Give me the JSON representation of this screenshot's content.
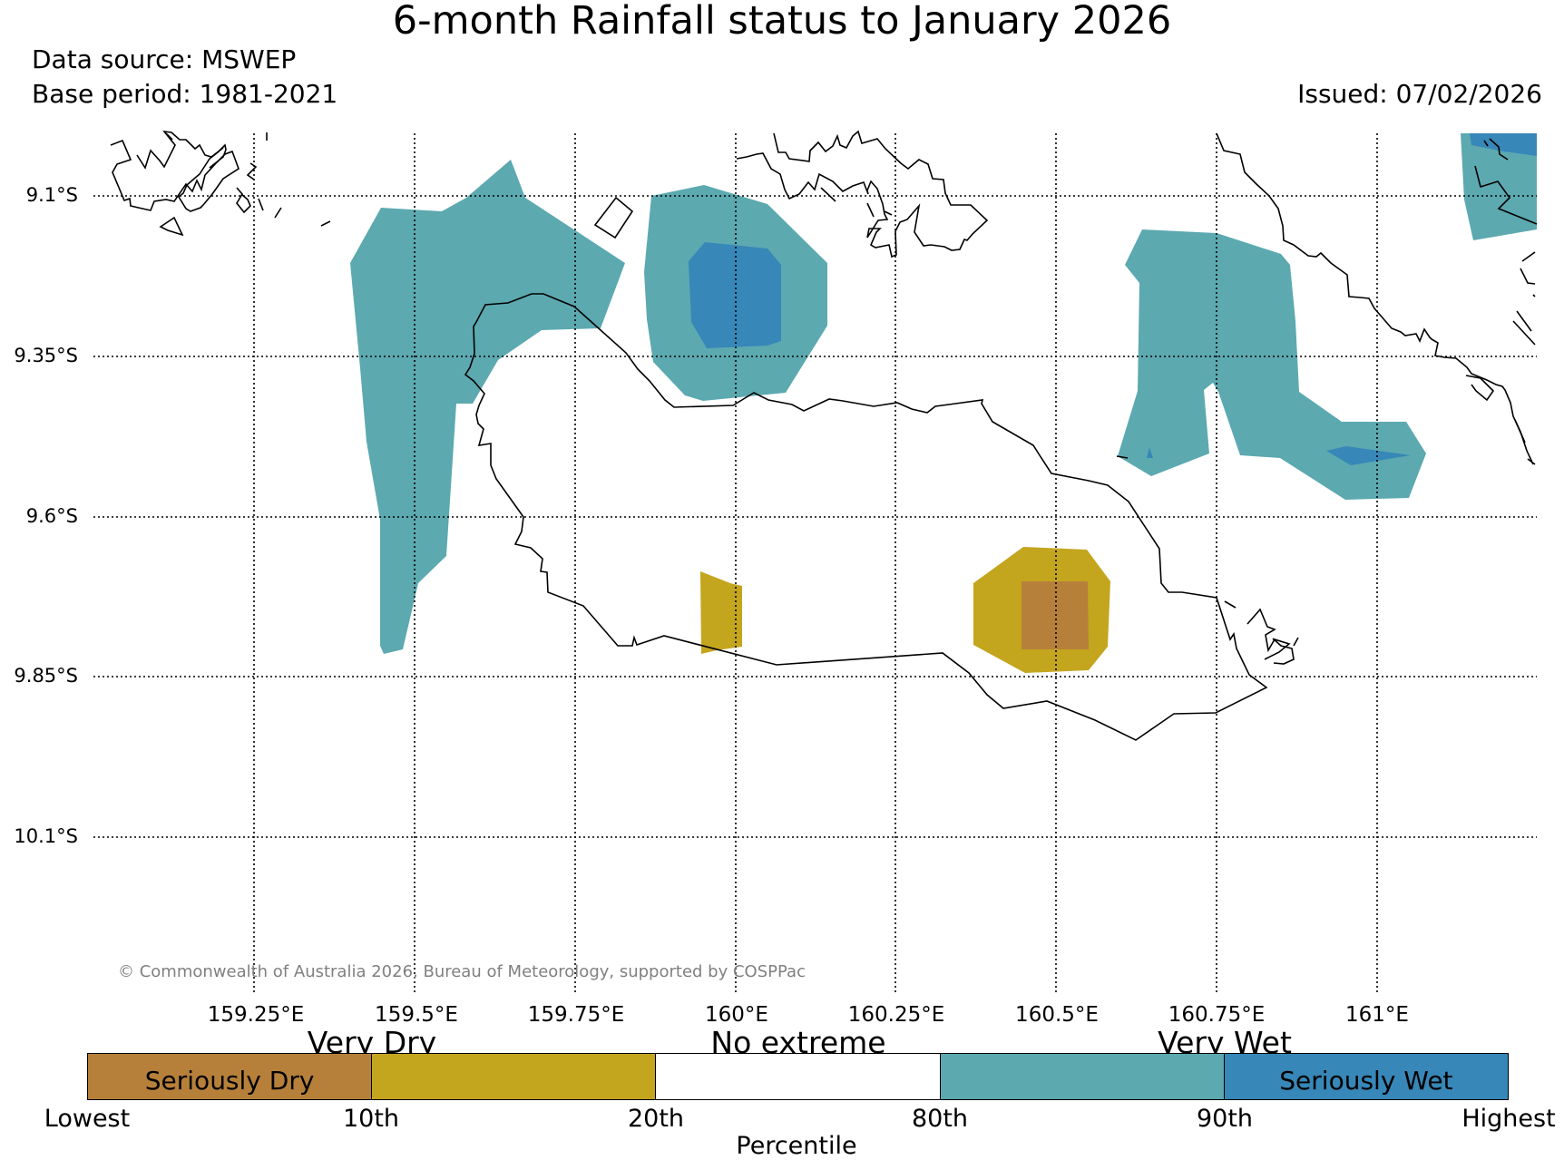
{
  "title": "6-month Rainfall status to January 2026",
  "data_source": "Data source: MSWEP",
  "base_period": "Base period: 1981-2021",
  "issued": "Issued: 07/02/2026",
  "copyright": "© Commonwealth of Australia 2026, Bureau of Meteorology, supported by COSPPac",
  "latitude_labels": [
    "9.1°S",
    "9.35°S",
    "9.6°S",
    "9.85°S",
    "10.1°S"
  ],
  "longitude_labels": [
    "159.25°E",
    "159.5°E",
    "159.75°E",
    "160°E",
    "160.25°E",
    "160.5°E",
    "160.75°E",
    "161°E"
  ],
  "legend": {
    "categories": [
      "Very Dry",
      "No extreme",
      "Very Wet"
    ],
    "segments": [
      {
        "label": "Seriously Dry",
        "color": "#b7803a"
      },
      {
        "label": "",
        "color": "#c4a51e"
      },
      {
        "label": "",
        "color": "#ffffff"
      },
      {
        "label": "",
        "color": "#5ca9b0"
      },
      {
        "label": "Seriously Wet",
        "color": "#3787b8"
      }
    ],
    "ticks": [
      "Lowest",
      "10th",
      "20th",
      "80th",
      "90th",
      "Highest"
    ],
    "axis_label": "Percentile"
  },
  "colors": {
    "seriously_dry": "#b7803a",
    "very_dry": "#c4a51e",
    "very_wet": "#5ca9b0",
    "seriously_wet": "#3787b8"
  }
}
